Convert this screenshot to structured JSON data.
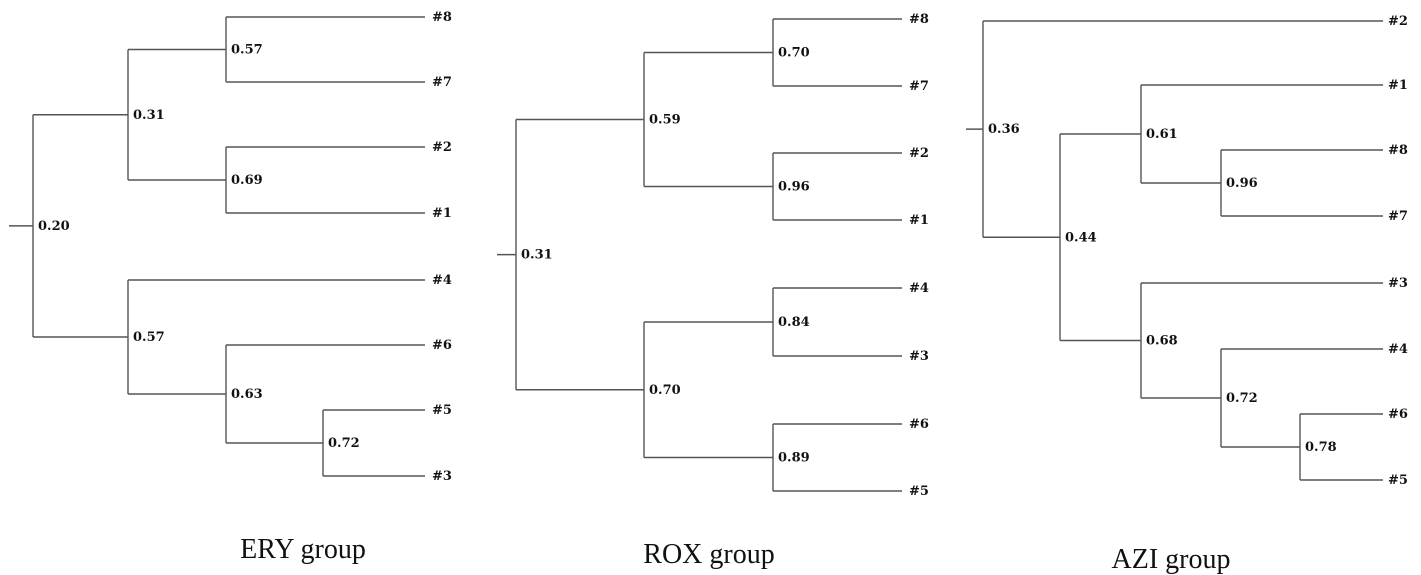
{
  "figure": {
    "panels": [
      {
        "caption": "ERY group",
        "tree": {
          "value": "0.20",
          "children": [
            {
              "value": "0.31",
              "children": [
                {
                  "value": "0.57",
                  "children": [
                    {
                      "leaf": "#8"
                    },
                    {
                      "leaf": "#7"
                    }
                  ]
                },
                {
                  "value": "0.69",
                  "children": [
                    {
                      "leaf": "#2"
                    },
                    {
                      "leaf": "#1"
                    }
                  ]
                }
              ]
            },
            {
              "value": "0.57",
              "children": [
                {
                  "leaf": "#4"
                },
                {
                  "value": "0.63",
                  "children": [
                    {
                      "leaf": "#6"
                    },
                    {
                      "value": "0.72",
                      "children": [
                        {
                          "leaf": "#5"
                        },
                        {
                          "leaf": "#3"
                        }
                      ]
                    }
                  ]
                }
              ]
            }
          ]
        }
      },
      {
        "caption": "ROX group",
        "tree": {
          "value": "0.31",
          "children": [
            {
              "value": "0.59",
              "children": [
                {
                  "value": "0.70",
                  "children": [
                    {
                      "leaf": "#8"
                    },
                    {
                      "leaf": "#7"
                    }
                  ]
                },
                {
                  "value": "0.96",
                  "children": [
                    {
                      "leaf": "#2"
                    },
                    {
                      "leaf": "#1"
                    }
                  ]
                }
              ]
            },
            {
              "value": "0.70",
              "children": [
                {
                  "value": "0.84",
                  "children": [
                    {
                      "leaf": "#4"
                    },
                    {
                      "leaf": "#3"
                    }
                  ]
                },
                {
                  "value": "0.89",
                  "children": [
                    {
                      "leaf": "#6"
                    },
                    {
                      "leaf": "#5"
                    }
                  ]
                }
              ]
            }
          ]
        }
      },
      {
        "caption": "AZI group",
        "tree": {
          "value": "0.36",
          "children": [
            {
              "leaf": "#2"
            },
            {
              "value": "0.44",
              "children": [
                {
                  "value": "0.61",
                  "children": [
                    {
                      "leaf": "#1"
                    },
                    {
                      "value": "0.96",
                      "children": [
                        {
                          "leaf": "#8"
                        },
                        {
                          "leaf": "#7"
                        }
                      ]
                    }
                  ]
                },
                {
                  "value": "0.68",
                  "children": [
                    {
                      "leaf": "#3"
                    },
                    {
                      "value": "0.72",
                      "children": [
                        {
                          "leaf": "#4"
                        },
                        {
                          "value": "0.78",
                          "children": [
                            {
                              "leaf": "#6"
                            },
                            {
                              "leaf": "#5"
                            }
                          ]
                        }
                      ]
                    }
                  ]
                }
              ]
            }
          ]
        }
      }
    ]
  }
}
